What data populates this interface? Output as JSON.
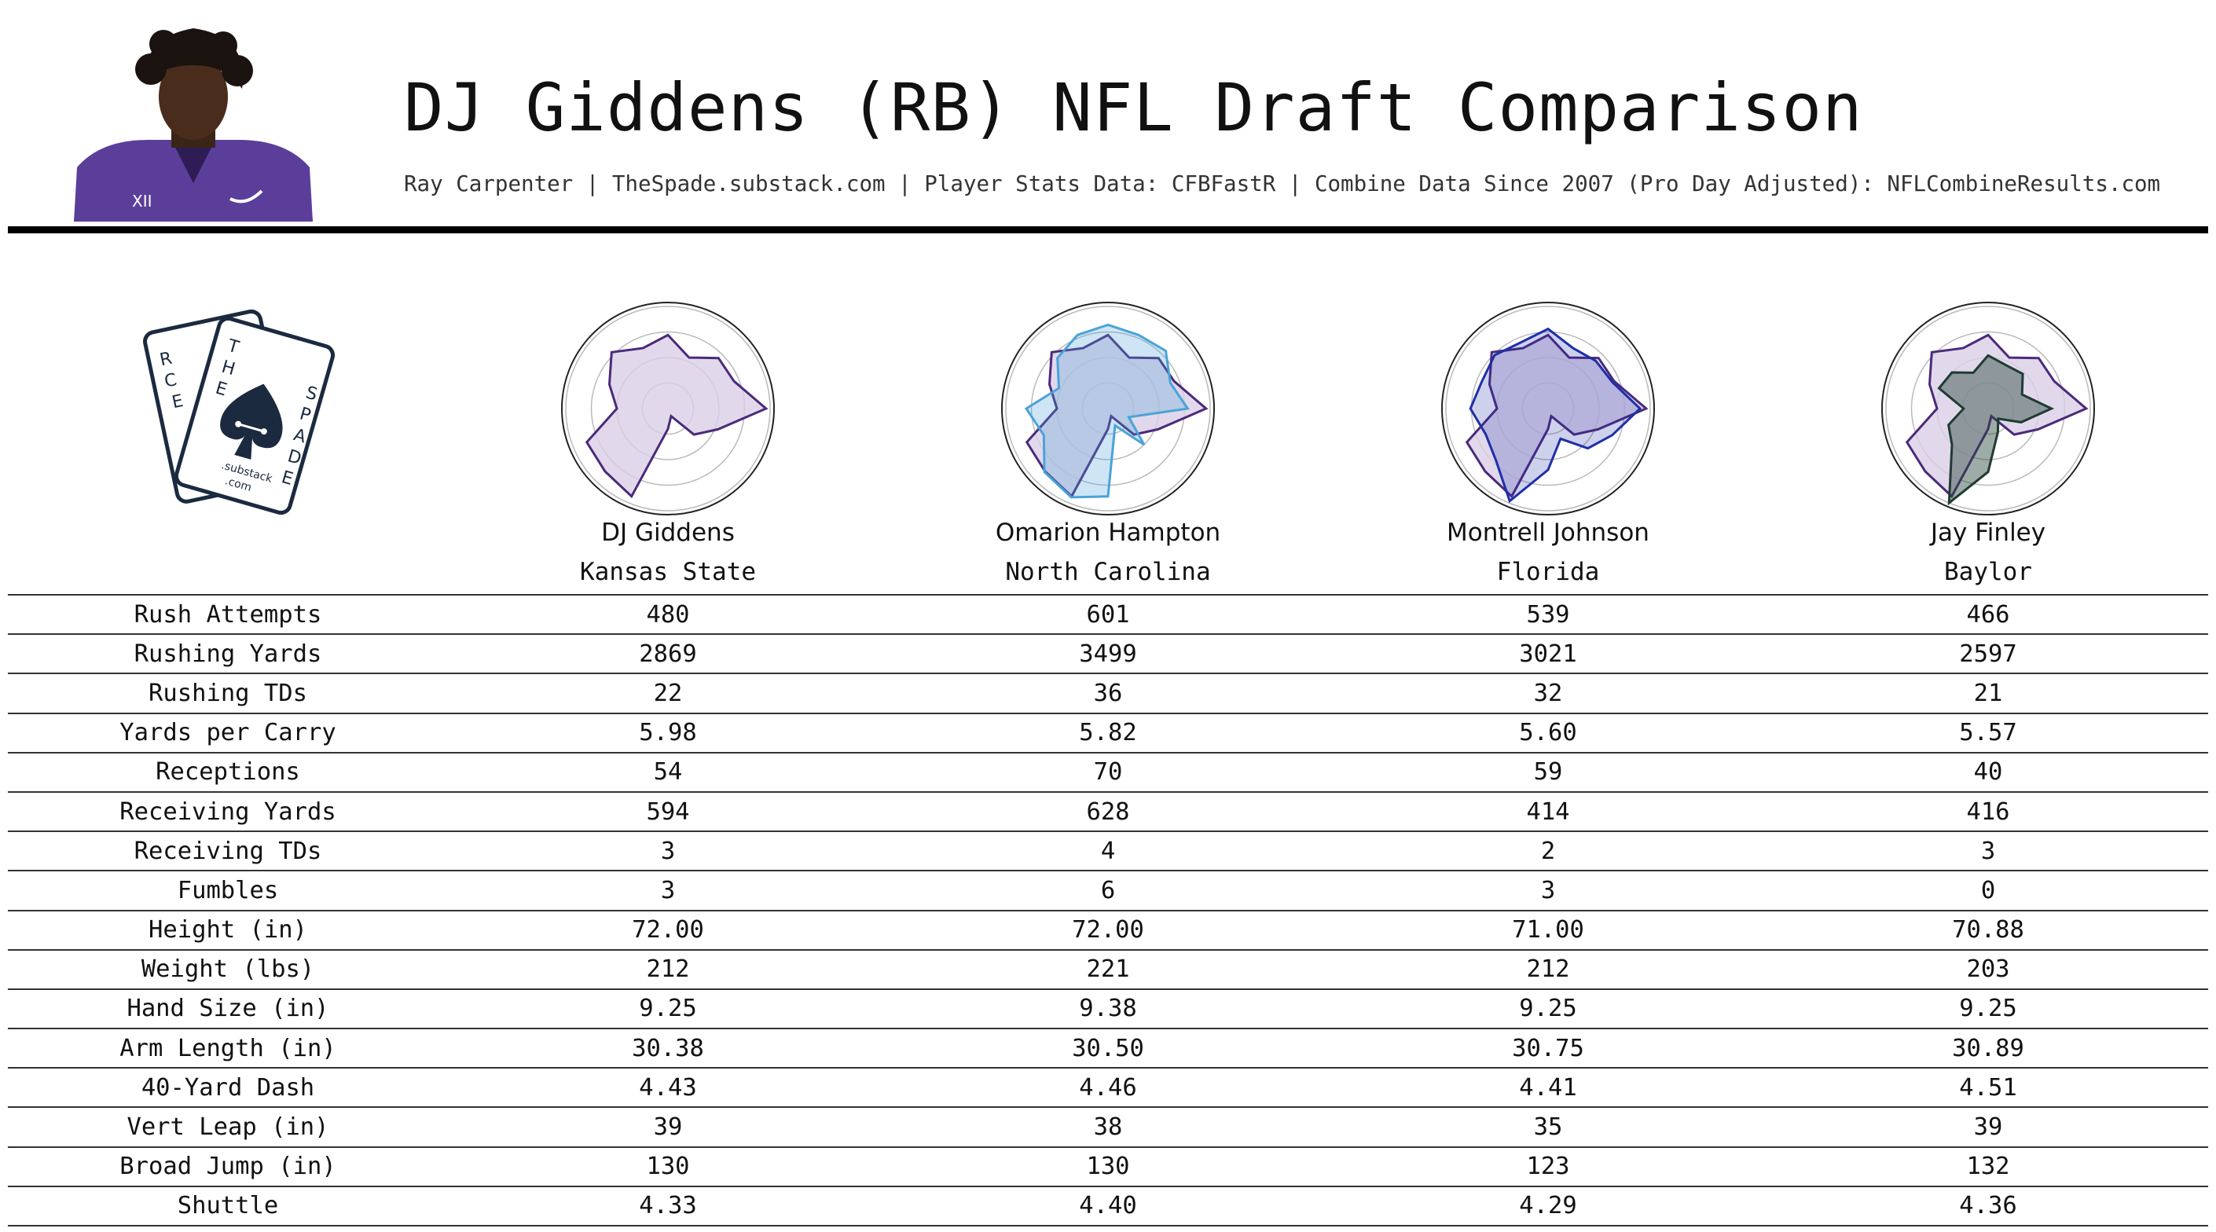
{
  "header": {
    "title": "DJ Giddens (RB) NFL Draft Comparison",
    "subtitle": "Ray Carpenter | TheSpade.substack.com | Player Stats Data: CFBFastR | Combine Data Since 2007 (Pro Day Adjusted): NFLCombineResults.com"
  },
  "logo": {
    "letters_left": [
      "R",
      "C",
      "E"
    ],
    "letters_t": [
      "T",
      "H",
      "E"
    ],
    "letters_right": [
      "S",
      "P",
      "A",
      "D",
      "E"
    ],
    "caption": [
      ".substack",
      ".com"
    ],
    "color": "#1b2a3f"
  },
  "colors": {
    "giddens": "#4b2a7b",
    "giddens_fill": "#d9cfe6",
    "hampton": "#4aa3d8",
    "johnson": "#1f2fa8",
    "finley": "#1f3b33"
  },
  "players": [
    {
      "name": "DJ Giddens",
      "school": "Kansas State"
    },
    {
      "name": "Omarion Hampton",
      "school": "North Carolina"
    },
    {
      "name": "Montrell Johnson",
      "school": "Florida"
    },
    {
      "name": "Jay Finley",
      "school": "Baylor"
    }
  ],
  "chart_data": {
    "type": "table",
    "columns": [
      "DJ Giddens",
      "Omarion Hampton",
      "Montrell Johnson",
      "Jay Finley"
    ],
    "rows": [
      {
        "label": "Rush Attempts",
        "values": [
          "480",
          "601",
          "539",
          "466"
        ]
      },
      {
        "label": "Rushing Yards",
        "values": [
          "2869",
          "3499",
          "3021",
          "2597"
        ]
      },
      {
        "label": "Rushing TDs",
        "values": [
          "22",
          "36",
          "32",
          "21"
        ]
      },
      {
        "label": "Yards per Carry",
        "values": [
          "5.98",
          "5.82",
          "5.60",
          "5.57"
        ]
      },
      {
        "label": "Receptions",
        "values": [
          "54",
          "70",
          "59",
          "40"
        ]
      },
      {
        "label": "Receiving Yards",
        "values": [
          "594",
          "628",
          "414",
          "416"
        ]
      },
      {
        "label": "Receiving TDs",
        "values": [
          "3",
          "4",
          "2",
          "3"
        ]
      },
      {
        "label": "Fumbles",
        "values": [
          "3",
          "6",
          "3",
          "0"
        ]
      },
      {
        "label": "Height (in)",
        "values": [
          "72.00",
          "72.00",
          "71.00",
          "70.88"
        ]
      },
      {
        "label": "Weight (lbs)",
        "values": [
          "212",
          "221",
          "212",
          "203"
        ]
      },
      {
        "label": "Hand Size (in)",
        "values": [
          "9.25",
          "9.38",
          "9.25",
          "9.25"
        ]
      },
      {
        "label": "Arm Length (in)",
        "values": [
          "30.38",
          "30.50",
          "30.75",
          "30.89"
        ]
      },
      {
        "label": "40-Yard Dash",
        "values": [
          "4.43",
          "4.46",
          "4.41",
          "4.51"
        ]
      },
      {
        "label": "Vert Leap (in)",
        "values": [
          "39",
          "38",
          "35",
          "39"
        ]
      },
      {
        "label": "Broad Jump (in)",
        "values": [
          "130",
          "130",
          "123",
          "132"
        ]
      },
      {
        "label": "Shuttle",
        "values": [
          "4.33",
          "4.40",
          "4.29",
          "4.36"
        ]
      }
    ],
    "radar": {
      "type": "radar",
      "range": [
        0,
        1
      ],
      "series": [
        {
          "player": "DJ Giddens",
          "values": [
            0.72,
            0.54,
            0.7,
            0.7,
            0.96,
            0.53,
            0.36,
            0.08,
            0.2,
            0.93,
            0.87,
            0.86,
            0.5,
            0.62,
            0.78,
            0.64
          ]
        },
        {
          "player": "Omarion Hampton",
          "values": [
            0.82,
            0.78,
            0.8,
            0.66,
            0.78,
            0.22,
            0.5,
            0.18,
            0.86,
            0.94,
            0.88,
            0.68,
            0.8,
            0.52,
            0.7,
            0.78
          ]
        },
        {
          "player": "Montrell Johnson",
          "values": [
            0.78,
            0.64,
            0.66,
            0.68,
            0.9,
            0.68,
            0.55,
            0.32,
            0.6,
            0.98,
            0.72,
            0.66,
            0.76,
            0.7,
            0.74,
            0.7
          ]
        },
        {
          "player": "Jay Finley",
          "values": [
            0.52,
            0.46,
            0.48,
            0.36,
            0.62,
            0.35,
            0.14,
            0.25,
            0.62,
            1.0,
            0.5,
            0.42,
            0.24,
            0.52,
            0.5,
            0.38
          ]
        }
      ]
    }
  }
}
